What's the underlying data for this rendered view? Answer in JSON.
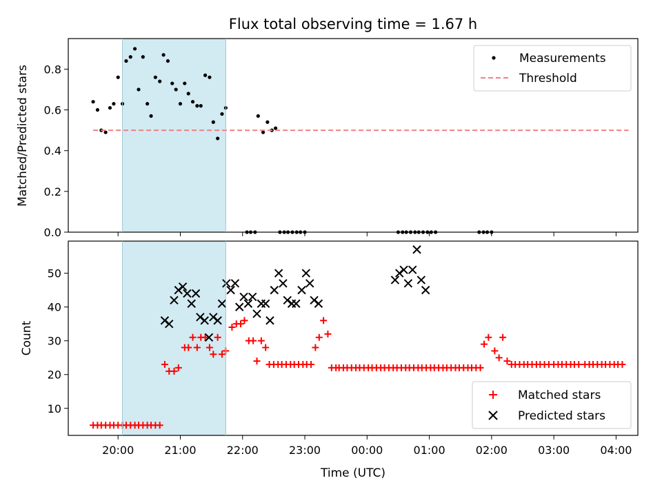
{
  "colors": {
    "measurement": "#000000",
    "threshold": "#f08080",
    "matched": "#ff0000",
    "predicted": "#000000",
    "shade": "#add8e6"
  },
  "chart_data": [
    {
      "type": "scatter",
      "title": "Flux total observing time = 1.67 h",
      "xlabel": "",
      "ylabel": "Matched/Predicted stars",
      "x_unit": "hours since 19:00 UTC",
      "xlim": [
        0.2,
        9.35
      ],
      "ylim": [
        0,
        0.95
      ],
      "yticks": [
        0.0,
        0.2,
        0.4,
        0.6,
        0.8
      ],
      "ytick_labels": [
        "0.0",
        "0.2",
        "0.4",
        "0.6",
        "0.8"
      ],
      "shaded_region": [
        1.07,
        2.73
      ],
      "legend": {
        "placement": "top-right",
        "entries": [
          "Measurements",
          "Threshold"
        ]
      },
      "series": [
        {
          "name": "Measurements",
          "marker": "dot",
          "x": [
            0.6,
            0.67,
            0.73,
            0.8,
            0.87,
            0.93,
            1.0,
            1.07,
            1.13,
            1.2,
            1.27,
            1.33,
            1.4,
            1.47,
            1.53,
            1.6,
            1.67,
            1.73,
            1.8,
            1.87,
            1.93,
            2.0,
            2.07,
            2.13,
            2.2,
            2.27,
            2.33,
            2.4,
            2.47,
            2.53,
            2.6,
            2.67,
            2.73,
            3.25,
            3.33,
            3.4,
            3.47,
            3.53,
            3.6,
            3.67,
            3.73,
            3.8,
            3.87,
            3.93,
            4.0,
            5.5,
            5.57,
            5.63,
            5.7,
            5.77,
            5.83,
            5.9,
            5.97,
            6.03,
            6.1,
            3.07,
            3.13,
            3.2,
            6.8,
            6.87,
            6.93,
            7.0
          ],
          "y": [
            0.64,
            0.6,
            0.5,
            0.49,
            0.61,
            0.63,
            0.76,
            0.63,
            0.84,
            0.86,
            0.9,
            0.7,
            0.86,
            0.63,
            0.57,
            0.76,
            0.74,
            0.87,
            0.84,
            0.73,
            0.7,
            0.63,
            0.73,
            0.68,
            0.64,
            0.62,
            0.62,
            0.77,
            0.76,
            0.54,
            0.46,
            0.58,
            0.61,
            0.57,
            0.49,
            0.54,
            0.5,
            0.51,
            0.0,
            0.0,
            0.0,
            0.0,
            0.0,
            0.0,
            0.0,
            0.0,
            0.0,
            0.0,
            0.0,
            0.0,
            0.0,
            0.0,
            0.0,
            0.0,
            0.0,
            0.0,
            0.0,
            0.0,
            0.0,
            0.0,
            0.0,
            0.0
          ]
        },
        {
          "name": "Threshold",
          "marker": "dashed-line",
          "x": [
            0.6,
            9.2
          ],
          "y": [
            0.5,
            0.5
          ]
        }
      ]
    },
    {
      "type": "scatter",
      "title": "",
      "xlabel": "Time (UTC)",
      "ylabel": "Count",
      "x_unit": "hours since 19:00 UTC",
      "xlim": [
        0.2,
        9.35
      ],
      "ylim": [
        2,
        59.5
      ],
      "yticks": [
        10,
        20,
        30,
        40,
        50
      ],
      "ytick_labels": [
        "10",
        "20",
        "30",
        "40",
        "50"
      ],
      "xticks": [
        1,
        2,
        3,
        4,
        5,
        6,
        7,
        8,
        9
      ],
      "xtick_labels": [
        "20:00",
        "21:00",
        "22:00",
        "23:00",
        "00:00",
        "01:00",
        "02:00",
        "03:00",
        "04:00"
      ],
      "shaded_region": [
        1.07,
        2.73
      ],
      "legend": {
        "placement": "bottom-right",
        "entries": [
          "Matched stars",
          "Predicted stars"
        ]
      },
      "series": [
        {
          "name": "Matched stars",
          "marker": "plus",
          "x": [
            0.6,
            0.67,
            0.73,
            0.8,
            0.87,
            0.93,
            1.0,
            1.07,
            1.13,
            1.2,
            1.27,
            1.33,
            1.4,
            1.47,
            1.53,
            1.6,
            1.67,
            1.75,
            1.82,
            1.9,
            1.97,
            2.07,
            2.13,
            2.2,
            2.27,
            2.33,
            2.4,
            2.47,
            2.53,
            2.6,
            2.67,
            2.73,
            2.83,
            2.9,
            2.97,
            3.03,
            3.1,
            3.17,
            3.23,
            3.3,
            3.37,
            3.43,
            3.5,
            3.57,
            3.63,
            3.7,
            3.77,
            3.83,
            3.9,
            3.97,
            4.03,
            4.1,
            4.17,
            4.23,
            4.3,
            4.37,
            4.43,
            4.5,
            4.55,
            4.62,
            4.68,
            4.75,
            4.82,
            4.88,
            4.95,
            5.02,
            5.08,
            5.15,
            5.22,
            5.28,
            5.35,
            5.42,
            5.48,
            5.55,
            5.62,
            5.68,
            5.75,
            5.82,
            5.88,
            5.95,
            6.02,
            6.08,
            6.15,
            6.22,
            6.28,
            6.35,
            6.42,
            6.48,
            6.55,
            6.62,
            6.68,
            6.75,
            6.82,
            6.88,
            6.95,
            7.05,
            7.12,
            7.18,
            7.25,
            7.32,
            7.38,
            7.45,
            7.52,
            7.58,
            7.65,
            7.72,
            7.78,
            7.85,
            7.92,
            8.0,
            8.07,
            8.13,
            8.2,
            8.27,
            8.33,
            8.4,
            8.5,
            8.57,
            8.63,
            8.7,
            8.77,
            8.83,
            8.9,
            8.97,
            9.03,
            9.1
          ],
          "y": [
            5,
            5,
            5,
            5,
            5,
            5,
            5,
            5,
            5,
            5,
            5,
            5,
            5,
            5,
            5,
            5,
            5,
            23,
            21,
            21,
            22,
            28,
            28,
            31,
            28,
            31,
            31,
            28,
            26,
            31,
            26,
            27,
            34,
            35,
            35,
            36,
            30,
            30,
            24,
            30,
            28,
            23,
            23,
            23,
            23,
            23,
            23,
            23,
            23,
            23,
            23,
            23,
            28,
            31,
            36,
            32,
            22,
            22,
            22,
            22,
            22,
            22,
            22,
            22,
            22,
            22,
            22,
            22,
            22,
            22,
            22,
            22,
            22,
            22,
            22,
            22,
            22,
            22,
            22,
            22,
            22,
            22,
            22,
            22,
            22,
            22,
            22,
            22,
            22,
            22,
            22,
            22,
            22,
            29,
            31,
            27,
            25,
            31,
            24,
            23,
            23,
            23,
            23,
            23,
            23,
            23,
            23,
            23,
            23,
            23,
            23,
            23,
            23,
            23,
            23,
            23,
            23,
            23,
            23,
            23,
            23,
            23,
            23,
            23,
            23,
            23
          ]
        },
        {
          "name": "Predicted stars",
          "marker": "x",
          "x": [
            1.75,
            1.82,
            1.9,
            1.97,
            2.04,
            2.11,
            2.18,
            2.25,
            2.32,
            2.39,
            2.46,
            2.53,
            2.6,
            2.67,
            2.74,
            2.81,
            2.88,
            2.95,
            3.02,
            3.09,
            3.16,
            3.23,
            3.3,
            3.37,
            3.44,
            3.51,
            3.58,
            3.65,
            3.72,
            3.79,
            3.86,
            3.95,
            4.02,
            4.08,
            4.15,
            4.22,
            5.45,
            5.52,
            5.59,
            5.66,
            5.73,
            5.8,
            5.87,
            5.94
          ],
          "y": [
            36,
            35,
            42,
            45,
            46,
            44,
            41,
            44,
            37,
            36,
            31,
            37,
            36,
            41,
            47,
            45,
            47,
            40,
            43,
            41,
            43,
            38,
            41,
            41,
            36,
            45,
            50,
            47,
            42,
            41,
            41,
            45,
            50,
            47,
            42,
            41,
            48,
            50,
            51,
            47,
            51,
            57,
            48,
            45
          ]
        }
      ]
    }
  ]
}
